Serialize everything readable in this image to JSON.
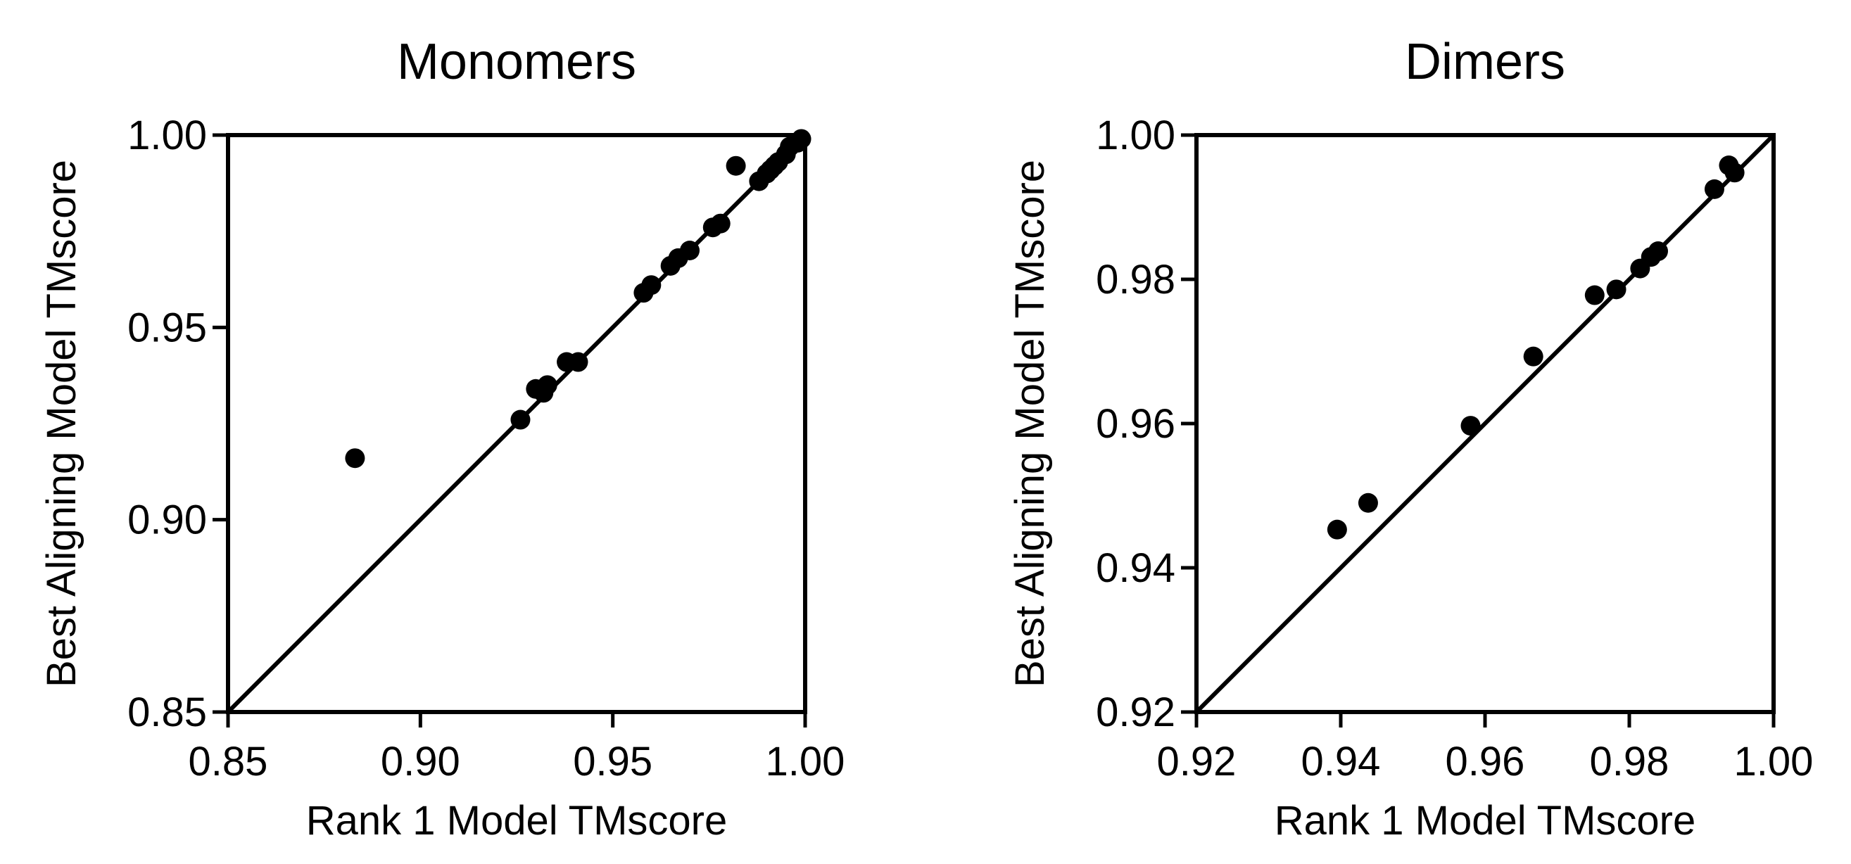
{
  "chart_data": [
    {
      "type": "scatter",
      "title": "Monomers",
      "xlabel": "Rank 1 Model TMscore",
      "ylabel": "Best Aligning Model TMscore",
      "xlim": [
        0.85,
        1.0
      ],
      "ylim": [
        0.85,
        1.0
      ],
      "xticks": [
        "0.85",
        "0.90",
        "0.95",
        "1.00"
      ],
      "yticks": [
        "0.85",
        "0.90",
        "0.95",
        "1.00"
      ],
      "grid": false,
      "reference_line": "y = x",
      "marker_color": "#000000",
      "points": [
        {
          "x": 0.883,
          "y": 0.916
        },
        {
          "x": 0.926,
          "y": 0.926
        },
        {
          "x": 0.93,
          "y": 0.934
        },
        {
          "x": 0.933,
          "y": 0.935
        },
        {
          "x": 0.932,
          "y": 0.933
        },
        {
          "x": 0.938,
          "y": 0.941
        },
        {
          "x": 0.941,
          "y": 0.941
        },
        {
          "x": 0.958,
          "y": 0.959
        },
        {
          "x": 0.96,
          "y": 0.961
        },
        {
          "x": 0.965,
          "y": 0.966
        },
        {
          "x": 0.967,
          "y": 0.968
        },
        {
          "x": 0.97,
          "y": 0.97
        },
        {
          "x": 0.976,
          "y": 0.976
        },
        {
          "x": 0.978,
          "y": 0.977
        },
        {
          "x": 0.982,
          "y": 0.992
        },
        {
          "x": 0.988,
          "y": 0.988
        },
        {
          "x": 0.99,
          "y": 0.99
        },
        {
          "x": 0.991,
          "y": 0.991
        },
        {
          "x": 0.992,
          "y": 0.992
        },
        {
          "x": 0.993,
          "y": 0.993
        },
        {
          "x": 0.995,
          "y": 0.995
        },
        {
          "x": 0.996,
          "y": 0.997
        },
        {
          "x": 0.998,
          "y": 0.998
        },
        {
          "x": 0.999,
          "y": 0.999
        }
      ]
    },
    {
      "type": "scatter",
      "title": "Dimers",
      "xlabel": "Rank 1 Model TMscore",
      "ylabel": "Best Aligning Model TMscore",
      "xlim": [
        0.92,
        1.0
      ],
      "ylim": [
        0.92,
        1.0
      ],
      "xticks": [
        "0.92",
        "0.94",
        "0.96",
        "0.98",
        "1.00"
      ],
      "yticks": [
        "0.92",
        "0.94",
        "0.96",
        "0.98",
        "1.00"
      ],
      "grid": false,
      "reference_line": "y = x",
      "marker_color": "#000000",
      "points": [
        {
          "x": 0.9395,
          "y": 0.9453
        },
        {
          "x": 0.9438,
          "y": 0.949
        },
        {
          "x": 0.958,
          "y": 0.9597
        },
        {
          "x": 0.9667,
          "y": 0.9693
        },
        {
          "x": 0.9752,
          "y": 0.9778
        },
        {
          "x": 0.9782,
          "y": 0.9786
        },
        {
          "x": 0.9815,
          "y": 0.9815
        },
        {
          "x": 0.983,
          "y": 0.9831
        },
        {
          "x": 0.984,
          "y": 0.9839
        },
        {
          "x": 0.9918,
          "y": 0.9925
        },
        {
          "x": 0.9938,
          "y": 0.9958
        },
        {
          "x": 0.9946,
          "y": 0.9948
        }
      ]
    }
  ]
}
